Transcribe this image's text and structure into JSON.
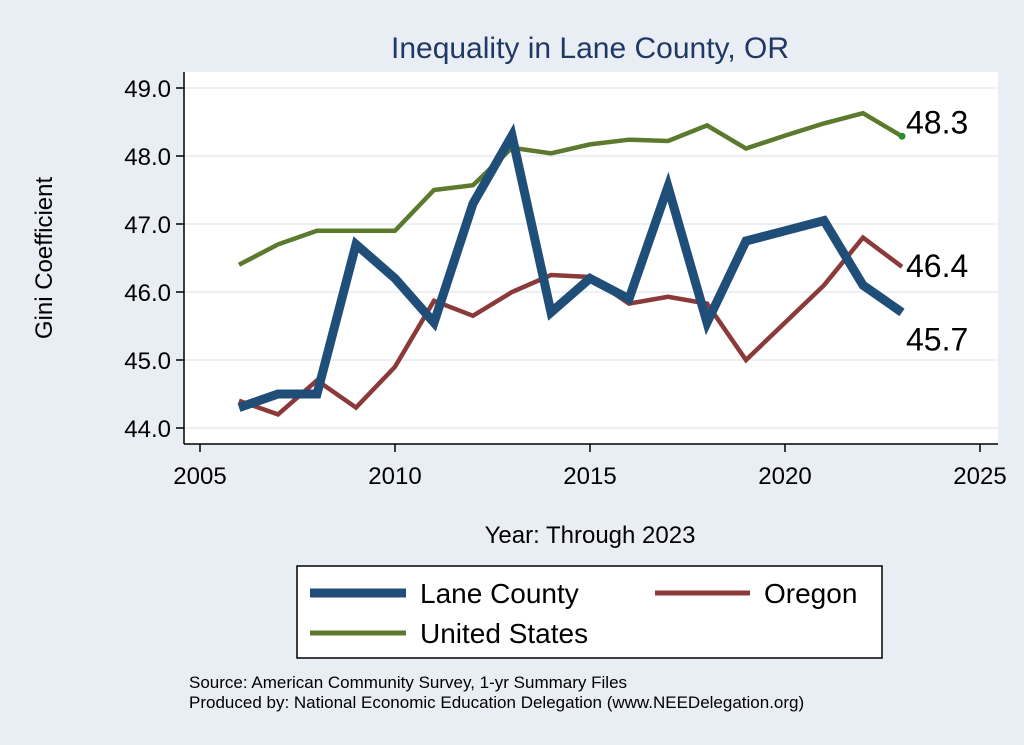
{
  "chart_data": {
    "type": "line",
    "title": "Inequality in Lane County, OR",
    "xlabel": "Year: Through 2023",
    "ylabel": "Gini Coefficient",
    "xlim": [
      2005,
      2025
    ],
    "ylim": [
      44.0,
      49.0
    ],
    "xticks": [
      2005,
      2010,
      2015,
      2020,
      2025
    ],
    "yticks": [
      44.0,
      45.0,
      46.0,
      47.0,
      48.0,
      49.0
    ],
    "ytick_labels": [
      "44.0",
      "45.0",
      "46.0",
      "47.0",
      "48.0",
      "49.0"
    ],
    "grid": true,
    "legend_position": "bottom",
    "series": [
      {
        "name": "Lane County",
        "color": "#1f4e79",
        "end_label": "45.7",
        "x": [
          2006,
          2007,
          2008,
          2009,
          2010,
          2011,
          2012,
          2013,
          2014,
          2015,
          2016,
          2017,
          2018,
          2019,
          2020,
          2021,
          2022,
          2023
        ],
        "values": [
          44.3,
          44.5,
          44.5,
          46.7,
          46.2,
          45.55,
          47.3,
          48.3,
          45.7,
          46.2,
          45.9,
          47.55,
          45.55,
          46.75,
          46.9,
          47.05,
          46.1,
          45.7
        ]
      },
      {
        "name": "Oregon",
        "color": "#8b3a3a",
        "end_label": "46.4",
        "x": [
          2006,
          2007,
          2008,
          2009,
          2010,
          2011,
          2012,
          2013,
          2014,
          2015,
          2016,
          2017,
          2018,
          2019,
          2020,
          2021,
          2022,
          2023
        ],
        "values": [
          44.4,
          44.2,
          44.7,
          44.3,
          44.9,
          45.87,
          45.65,
          46.0,
          46.25,
          46.22,
          45.83,
          45.93,
          45.83,
          45.0,
          45.55,
          46.1,
          46.8,
          46.37
        ]
      },
      {
        "name": "United States",
        "color": "#5b7a2e",
        "end_label": "48.3",
        "x": [
          2006,
          2007,
          2008,
          2009,
          2010,
          2011,
          2012,
          2013,
          2014,
          2015,
          2016,
          2017,
          2018,
          2019,
          2020,
          2021,
          2022,
          2023
        ],
        "values": [
          46.4,
          46.7,
          46.9,
          46.9,
          46.9,
          47.5,
          47.57,
          48.12,
          48.04,
          48.17,
          48.24,
          48.22,
          48.45,
          48.11,
          48.3,
          48.48,
          48.63,
          48.29
        ]
      }
    ]
  },
  "source": {
    "line1": "Source: American Community Survey, 1-yr Summary Files",
    "line2": "Produced by: National Economic Education Delegation (www.NEEDelegation.org)"
  }
}
